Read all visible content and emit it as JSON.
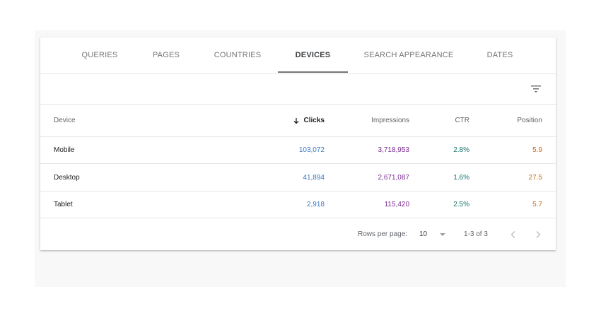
{
  "tabs": [
    {
      "label": "QUERIES",
      "active": false
    },
    {
      "label": "PAGES",
      "active": false
    },
    {
      "label": "COUNTRIES",
      "active": false
    },
    {
      "label": "DEVICES",
      "active": true
    },
    {
      "label": "SEARCH APPEARANCE",
      "active": false
    },
    {
      "label": "DATES",
      "active": false
    }
  ],
  "filter": {
    "icon": "filter-icon"
  },
  "table": {
    "headers": {
      "device": "Device",
      "clicks": "Clicks",
      "impressions": "Impressions",
      "ctr": "CTR",
      "position": "Position"
    },
    "sort": {
      "column": "clicks",
      "direction": "descending",
      "icon": "arrow-down-icon"
    },
    "rows": [
      {
        "device": "Mobile",
        "clicks": "103,072",
        "impressions": "3,718,953",
        "ctr": "2.8%",
        "position": "5.9"
      },
      {
        "device": "Desktop",
        "clicks": "41,894",
        "impressions": "2,671,087",
        "ctr": "1.6%",
        "position": "27.5"
      },
      {
        "device": "Tablet",
        "clicks": "2,918",
        "impressions": "115,420",
        "ctr": "2.5%",
        "position": "5.7"
      }
    ]
  },
  "pagination": {
    "rows_per_page_label": "Rows per page:",
    "rows_per_page_value": "10",
    "range": "1-3 of 3"
  },
  "colors": {
    "clicks": "#3b78c4",
    "impressions": "#7b2c8f",
    "ctr": "#17756a",
    "position": "#c76a17"
  }
}
